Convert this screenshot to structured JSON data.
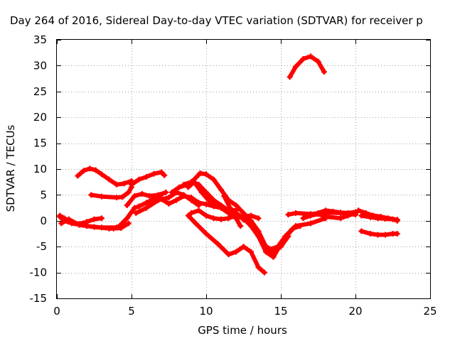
{
  "chart_data": {
    "type": "line",
    "title": "Day 264 of 2016, Sidereal Day-to-day VTEC variation (SDTVAR) for receiver p",
    "xlabel": "GPS time / hours",
    "ylabel": "SDTVAR / TECUs",
    "xlim": [
      0,
      25
    ],
    "ylim": [
      -15,
      35
    ],
    "xticks": [
      0,
      5,
      10,
      15,
      20,
      25
    ],
    "yticks": [
      -15,
      -10,
      -5,
      0,
      5,
      10,
      15,
      20,
      25,
      30,
      35
    ],
    "xtick_labels": [
      "0",
      "5",
      "10",
      "15",
      "20",
      "25"
    ],
    "ytick_labels": [
      "-15",
      "-10",
      "-5",
      "0",
      "5",
      "10",
      "15",
      "20",
      "25",
      "30",
      "35"
    ],
    "grid": true,
    "series_color": "#ff0000",
    "series": [
      {
        "name": "s1",
        "x": [
          0.2,
          0.5,
          1.0,
          1.5,
          2.0,
          2.5,
          3.0
        ],
        "y": [
          1.0,
          0.5,
          -0.3,
          -0.6,
          -0.2,
          0.3,
          0.5
        ]
      },
      {
        "name": "s2",
        "x": [
          0.2,
          0.5,
          1.0,
          2.0,
          3.0,
          4.0,
          4.3
        ],
        "y": [
          0.8,
          0.0,
          -0.5,
          -1.0,
          -1.3,
          -1.3,
          -1.0
        ]
      },
      {
        "name": "s3",
        "x": [
          0.3,
          0.8,
          1.5,
          2.5,
          3.5,
          4.3,
          4.8
        ],
        "y": [
          -0.5,
          0.3,
          -0.8,
          -1.2,
          -1.5,
          -1.4,
          -0.5
        ]
      },
      {
        "name": "s4",
        "x": [
          1.4,
          1.8,
          2.2,
          2.6,
          3.0,
          3.5,
          4.0,
          4.5,
          5.0
        ],
        "y": [
          8.7,
          9.7,
          10.1,
          9.8,
          9.0,
          8.0,
          7.0,
          7.2,
          7.7
        ]
      },
      {
        "name": "s5",
        "x": [
          2.3,
          3.0,
          4.0,
          4.4,
          4.8,
          5.0
        ],
        "y": [
          5.0,
          4.7,
          4.5,
          4.6,
          5.5,
          6.5
        ]
      },
      {
        "name": "s6",
        "x": [
          3.8,
          4.2,
          4.7,
          5.2,
          5.5,
          6.0,
          6.5,
          7.0
        ],
        "y": [
          -1.5,
          -1.0,
          0.5,
          2.5,
          2.8,
          3.5,
          4.2,
          5.0
        ]
      },
      {
        "name": "s7",
        "x": [
          4.7,
          5.2,
          5.7,
          6.2,
          6.8,
          7.3
        ],
        "y": [
          3.0,
          4.8,
          5.2,
          4.8,
          5.0,
          5.5
        ]
      },
      {
        "name": "s8",
        "x": [
          5.0,
          5.5,
          6.0,
          6.5,
          7.0,
          7.2
        ],
        "y": [
          7.0,
          8.0,
          8.5,
          9.1,
          9.4,
          8.8
        ]
      },
      {
        "name": "s9",
        "x": [
          5.3,
          6.0,
          6.8,
          7.5,
          8.0,
          8.5,
          9.0,
          9.5
        ],
        "y": [
          1.5,
          2.5,
          4.0,
          4.5,
          5.5,
          5.0,
          4.0,
          3.0
        ]
      },
      {
        "name": "s10",
        "x": [
          7.0,
          7.5,
          8.0,
          8.5,
          9.0,
          9.5,
          10.0,
          10.5,
          11.0,
          11.5,
          12.0
        ],
        "y": [
          4.2,
          3.3,
          4.0,
          4.8,
          4.5,
          3.5,
          3.2,
          2.8,
          2.5,
          2.2,
          2.0
        ]
      },
      {
        "name": "s11",
        "x": [
          7.7,
          8.2,
          8.8,
          9.2,
          9.6,
          10.0,
          10.5,
          11.0,
          11.5,
          12.0,
          12.5,
          13.0,
          13.5,
          14.0
        ],
        "y": [
          5.5,
          6.5,
          7.0,
          8.0,
          9.2,
          9.0,
          8.0,
          6.0,
          4.0,
          3.0,
          1.5,
          0.0,
          -2.0,
          -5.0
        ]
      },
      {
        "name": "s12",
        "x": [
          8.5,
          9.0,
          9.5,
          10.0,
          10.5,
          11.0,
          11.5,
          12.0,
          12.5,
          13.0
        ],
        "y": [
          7.0,
          7.5,
          7.0,
          5.5,
          4.0,
          3.0,
          2.0,
          1.0,
          0.5,
          0.0
        ]
      },
      {
        "name": "s13",
        "x": [
          8.8,
          9.2,
          9.7,
          10.3,
          11.0,
          11.5,
          12.0,
          12.5,
          13.0,
          13.5
        ],
        "y": [
          6.5,
          7.5,
          5.5,
          3.5,
          2.5,
          1.5,
          0.5,
          0.8,
          1.0,
          0.5
        ]
      },
      {
        "name": "s14",
        "x": [
          9.0,
          9.5,
          10.0,
          10.5,
          11.0,
          11.5,
          12.0
        ],
        "y": [
          1.5,
          2.0,
          1.0,
          0.5,
          0.3,
          0.5,
          1.0
        ]
      },
      {
        "name": "s15",
        "x": [
          8.8,
          9.3,
          10.0,
          10.8,
          11.5,
          12.0,
          12.5,
          13.0,
          13.5,
          13.9
        ],
        "y": [
          1.0,
          -0.5,
          -2.5,
          -4.5,
          -6.5,
          -6.0,
          -5.0,
          -6.0,
          -9.0,
          -10.0
        ]
      },
      {
        "name": "s16",
        "x": [
          11.2,
          11.6,
          12.0,
          12.3
        ],
        "y": [
          4.8,
          2.5,
          0.5,
          -1.0
        ]
      },
      {
        "name": "s17",
        "x": [
          12.0,
          12.5,
          13.0,
          13.5,
          14.0,
          14.5,
          15.0,
          15.5
        ],
        "y": [
          1.5,
          0.5,
          -1.0,
          -3.0,
          -5.5,
          -6.0,
          -5.0,
          -3.0
        ]
      },
      {
        "name": "s18",
        "x": [
          12.5,
          13.0,
          13.5,
          14.0,
          14.5,
          15.0,
          15.5,
          16.0,
          17.0,
          18.0
        ],
        "y": [
          0.2,
          -0.5,
          -3.0,
          -6.0,
          -7.0,
          -4.5,
          -2.5,
          -1.0,
          -0.5,
          0.5
        ]
      },
      {
        "name": "s19",
        "x": [
          13.3,
          13.8,
          14.3,
          14.8,
          15.3,
          15.8,
          16.3
        ],
        "y": [
          -2.0,
          -4.5,
          -5.5,
          -5.0,
          -3.0,
          -1.5,
          -1.0
        ]
      },
      {
        "name": "s20",
        "x": [
          15.6,
          16.0,
          16.5,
          17.0,
          17.5,
          17.9
        ],
        "y": [
          27.8,
          29.8,
          31.3,
          31.8,
          30.8,
          28.8
        ]
      },
      {
        "name": "s21",
        "x": [
          15.5,
          16.0,
          17.0,
          18.0,
          19.0,
          20.0
        ],
        "y": [
          1.2,
          1.5,
          1.3,
          1.6,
          1.5,
          1.2
        ]
      },
      {
        "name": "s22",
        "x": [
          16.5,
          17.0,
          17.5,
          18.0,
          18.5,
          19.0,
          19.5,
          20.0
        ],
        "y": [
          0.5,
          1.0,
          1.5,
          2.0,
          1.8,
          1.6,
          1.5,
          1.7
        ]
      },
      {
        "name": "s23",
        "x": [
          17.0,
          17.5,
          18.0,
          19.0,
          19.5,
          20.0
        ],
        "y": [
          1.0,
          1.3,
          0.8,
          0.5,
          1.0,
          1.5
        ]
      },
      {
        "name": "s24",
        "x": [
          20.2,
          20.7,
          21.2,
          21.7,
          22.2,
          22.8
        ],
        "y": [
          2.0,
          1.5,
          1.0,
          0.8,
          0.5,
          0.2
        ]
      },
      {
        "name": "s25",
        "x": [
          20.4,
          21.0,
          21.5,
          22.0,
          22.5,
          22.8
        ],
        "y": [
          1.0,
          0.7,
          0.5,
          0.4,
          0.3,
          0.0
        ]
      },
      {
        "name": "s26",
        "x": [
          20.4,
          21.0,
          21.5,
          22.0,
          22.5,
          22.8
        ],
        "y": [
          -2.0,
          -2.5,
          -2.7,
          -2.7,
          -2.5,
          -2.5
        ]
      }
    ]
  }
}
